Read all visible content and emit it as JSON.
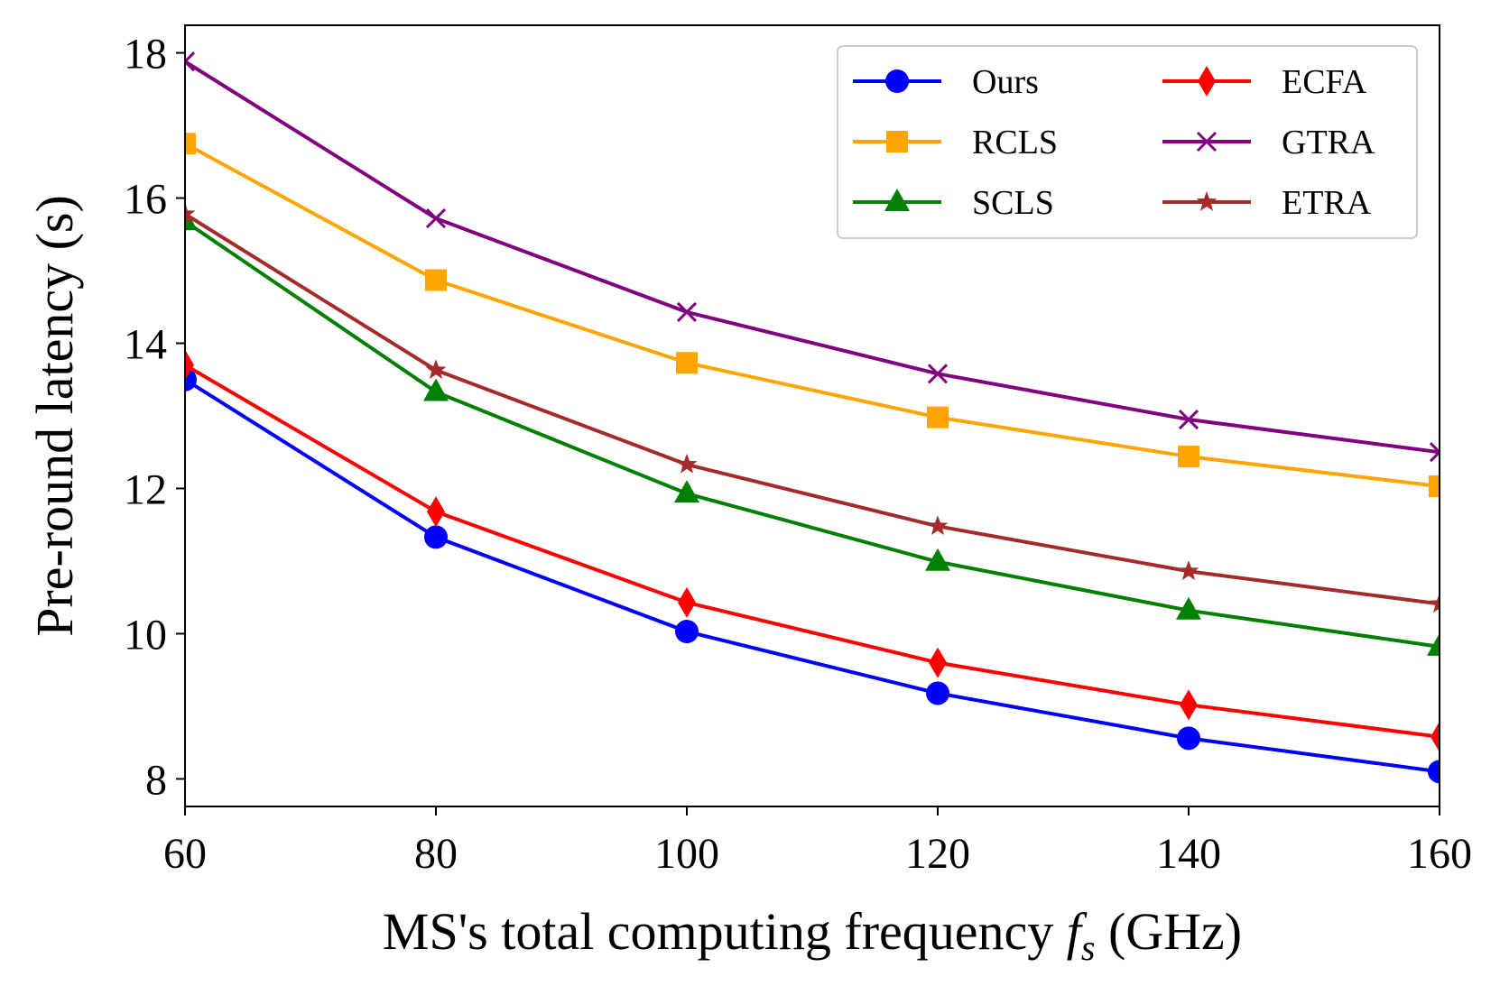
{
  "chart_data": {
    "type": "line",
    "title": "",
    "xlabel_prefix": "MS's total computing frequency ",
    "xlabel_var": "f",
    "xlabel_sub": "s",
    "xlabel_suffix": " (GHz)",
    "ylabel": "Pre-round latency (s)",
    "xlim": [
      60,
      160
    ],
    "ylim": [
      7.62,
      18.38
    ],
    "x": [
      60,
      80,
      100,
      120,
      140,
      160
    ],
    "xticks": [
      "60",
      "80",
      "100",
      "120",
      "140",
      "160"
    ],
    "yticks": [
      "8",
      "10",
      "12",
      "14",
      "16",
      "18"
    ],
    "grid": false,
    "legend_position": "top-right",
    "series": [
      {
        "name": "Ours",
        "color": "#0000ff",
        "marker": "circle",
        "values": [
          13.5,
          11.33,
          10.03,
          9.18,
          8.56,
          8.1
        ]
      },
      {
        "name": "RCLS",
        "color": "#ffa500",
        "marker": "square",
        "values": [
          16.75,
          14.87,
          13.73,
          12.98,
          12.44,
          12.03
        ]
      },
      {
        "name": "SCLS",
        "color": "#008000",
        "marker": "triangle",
        "values": [
          15.68,
          13.33,
          11.93,
          10.99,
          10.32,
          9.82
        ]
      },
      {
        "name": "ECFA",
        "color": "#ff0000",
        "marker": "diamond",
        "values": [
          13.7,
          11.68,
          10.43,
          9.6,
          9.02,
          8.58
        ]
      },
      {
        "name": "GTRA",
        "color": "#800080",
        "marker": "x",
        "values": [
          17.88,
          15.72,
          14.43,
          13.58,
          12.95,
          12.5
        ]
      },
      {
        "name": "ETRA",
        "color": "#a52a2a",
        "marker": "star",
        "values": [
          15.78,
          13.63,
          12.33,
          11.48,
          10.86,
          10.41
        ]
      }
    ]
  }
}
